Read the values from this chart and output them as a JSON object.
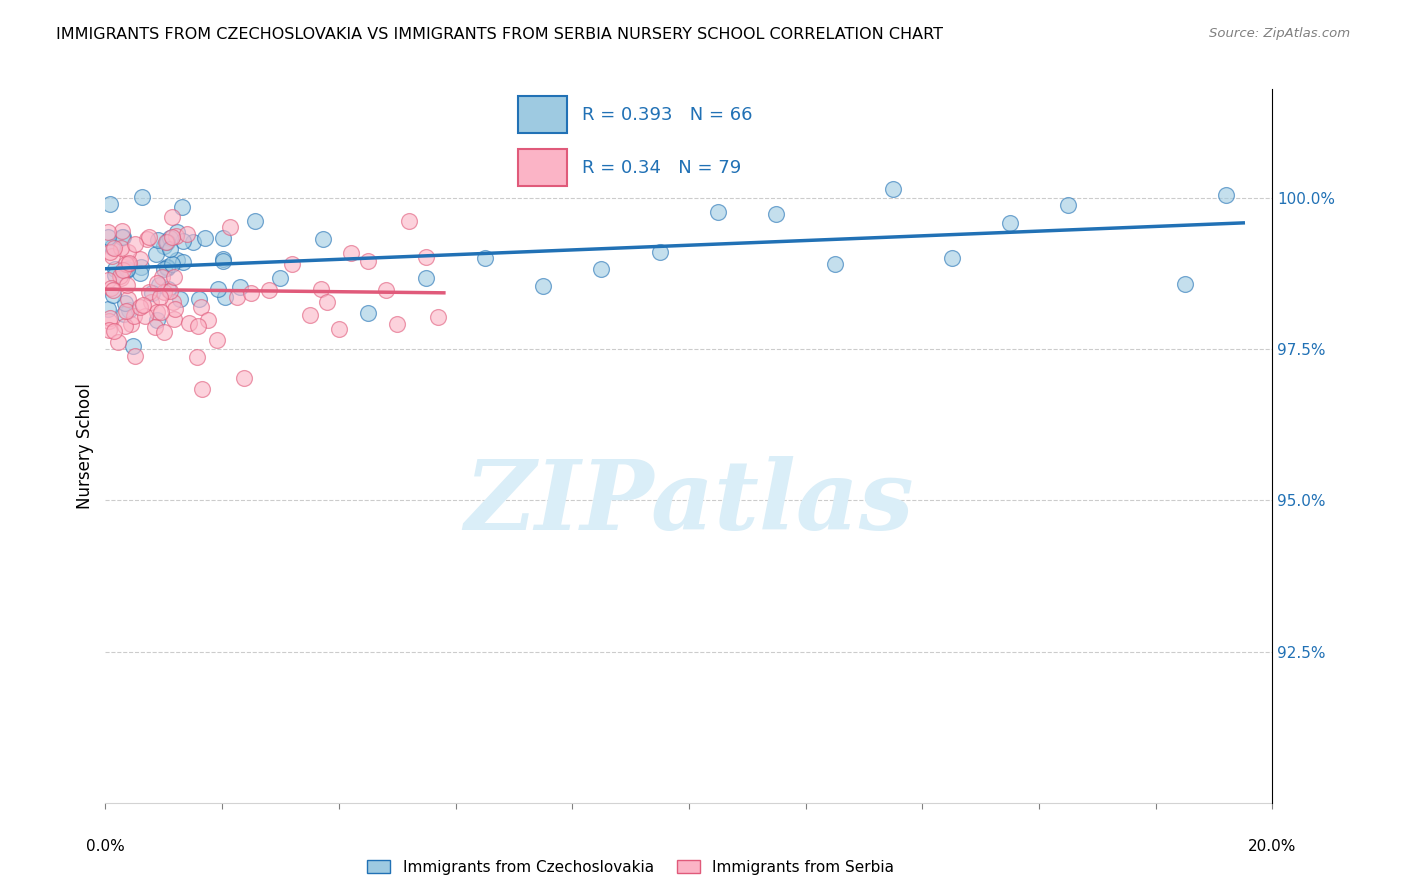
{
  "title": "IMMIGRANTS FROM CZECHOSLOVAKIA VS IMMIGRANTS FROM SERBIA NURSERY SCHOOL CORRELATION CHART",
  "source": "Source: ZipAtlas.com",
  "ylabel": "Nursery School",
  "xmin": 0.0,
  "xmax": 20.0,
  "ymin": 90.0,
  "ymax": 101.8,
  "yticks": [
    92.5,
    95.0,
    97.5,
    100.0
  ],
  "ytick_labels": [
    "92.5%",
    "95.0%",
    "97.5%",
    "100.0%"
  ],
  "R_czech": 0.393,
  "N_czech": 66,
  "R_serbia": 0.34,
  "N_serbia": 79,
  "color_czech": "#9ecae1",
  "color_serbia": "#fbb4c6",
  "color_line_czech": "#2171b5",
  "color_line_serbia": "#e05a7a",
  "color_right_axis": "#2171b5",
  "watermark_color": "#daeef8",
  "grid_color": "#cccccc"
}
